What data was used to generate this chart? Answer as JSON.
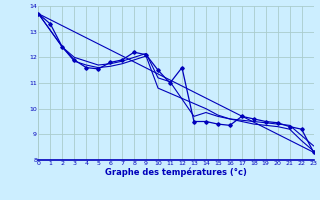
{
  "background_color": "#cceeff",
  "grid_color": "#aacccc",
  "line_color": "#0000bb",
  "xlabel": "Graphe des températures (°c)",
  "xlim": [
    0,
    23
  ],
  "ylim": [
    8,
    14
  ],
  "xticks": [
    0,
    1,
    2,
    3,
    4,
    5,
    6,
    7,
    8,
    9,
    10,
    11,
    12,
    13,
    14,
    15,
    16,
    17,
    18,
    19,
    20,
    21,
    22,
    23
  ],
  "yticks": [
    8,
    9,
    10,
    11,
    12,
    13,
    14
  ],
  "series1_x": [
    0,
    1,
    2,
    3,
    4,
    5,
    6,
    7,
    8,
    9,
    10,
    11,
    12,
    13,
    14,
    15,
    16,
    17,
    18,
    19,
    20,
    21,
    22,
    23
  ],
  "series1_y": [
    13.7,
    13.3,
    12.4,
    11.9,
    11.6,
    11.55,
    11.8,
    11.9,
    12.2,
    12.1,
    11.5,
    11.0,
    11.6,
    9.5,
    9.5,
    9.4,
    9.35,
    9.7,
    9.6,
    9.5,
    9.45,
    9.3,
    9.2,
    8.3
  ],
  "series2_x": [
    0,
    23
  ],
  "series2_y": [
    13.7,
    8.3
  ],
  "series3_x": [
    0,
    2,
    3,
    5,
    6,
    7,
    8,
    9,
    10,
    11,
    13,
    14,
    15,
    16,
    17,
    18,
    19,
    20,
    21,
    22,
    23
  ],
  "series3_y": [
    13.7,
    12.4,
    12.0,
    11.7,
    11.75,
    11.85,
    12.0,
    12.15,
    11.2,
    11.05,
    9.7,
    9.85,
    9.7,
    9.6,
    9.55,
    9.5,
    9.45,
    9.4,
    9.35,
    8.95,
    8.55
  ],
  "series4_x": [
    0,
    2,
    3,
    4,
    5,
    6,
    7,
    8,
    9,
    10,
    11,
    14,
    15,
    16,
    17,
    18,
    19,
    20,
    21,
    22,
    23
  ],
  "series4_y": [
    13.7,
    12.4,
    11.85,
    11.7,
    11.6,
    11.65,
    11.75,
    11.9,
    12.05,
    10.8,
    10.6,
    10.0,
    9.75,
    9.6,
    9.5,
    9.4,
    9.35,
    9.3,
    9.2,
    8.75,
    8.35
  ]
}
